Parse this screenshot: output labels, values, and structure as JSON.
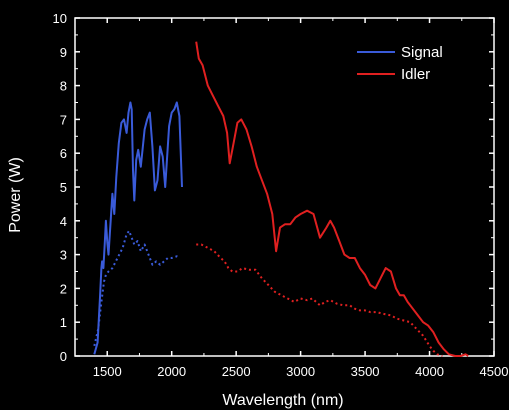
{
  "chart_data": {
    "type": "line",
    "title": "",
    "xlabel": "Wavelength (nm)",
    "ylabel": "Power (W)",
    "xlim": [
      1250,
      4500
    ],
    "ylim": [
      0,
      10
    ],
    "xticks": [
      1500,
      2000,
      2500,
      3000,
      3500,
      4000,
      4500
    ],
    "yticks": [
      0,
      1,
      2,
      3,
      4,
      5,
      6,
      7,
      8,
      9,
      10
    ],
    "background": "#000000",
    "axis_color": "#ffffff",
    "legend_position": "top-right",
    "series": [
      {
        "name": "Signal",
        "color": "#3a5bd9",
        "style": "solid",
        "in_legend": true,
        "x": [
          1400,
          1425,
          1445,
          1455,
          1460,
          1470,
          1480,
          1490,
          1500,
          1510,
          1520,
          1530,
          1540,
          1555,
          1570,
          1590,
          1610,
          1630,
          1650,
          1665,
          1680,
          1690,
          1700,
          1710,
          1725,
          1740,
          1760,
          1790,
          1810,
          1830,
          1850,
          1870,
          1890,
          1910,
          1930,
          1950,
          1980,
          2000,
          2020,
          2040,
          2060,
          2080
        ],
        "y": [
          0.05,
          0.4,
          1.8,
          2.6,
          2.8,
          2.6,
          3.3,
          4.0,
          3.4,
          3.0,
          3.6,
          4.2,
          4.8,
          4.2,
          5.3,
          6.3,
          6.9,
          7.0,
          6.6,
          7.2,
          7.5,
          7.3,
          5.5,
          4.6,
          5.8,
          6.1,
          5.6,
          6.7,
          7.0,
          7.2,
          6.2,
          4.9,
          5.2,
          6.2,
          5.9,
          5.0,
          6.8,
          7.2,
          7.3,
          7.5,
          7.1,
          5.0
        ]
      },
      {
        "name": "Signal (dotted)",
        "color": "#3a5bd9",
        "style": "dotted",
        "in_legend": false,
        "x": [
          1400,
          1430,
          1455,
          1475,
          1490,
          1510,
          1540,
          1580,
          1620,
          1650,
          1670,
          1690,
          1710,
          1735,
          1760,
          1790,
          1820,
          1850,
          1880,
          1910,
          1940,
          1970,
          2000,
          2040,
          2060
        ],
        "y": [
          0.3,
          0.8,
          1.6,
          2.2,
          2.4,
          2.5,
          2.6,
          2.9,
          3.2,
          3.6,
          3.7,
          3.5,
          3.3,
          3.4,
          3.1,
          3.3,
          3.0,
          2.7,
          2.8,
          2.7,
          2.8,
          2.9,
          2.9,
          2.95,
          2.9
        ]
      },
      {
        "name": "Idler",
        "color": "#e02020",
        "style": "solid",
        "in_legend": true,
        "x": [
          2190,
          2210,
          2240,
          2280,
          2320,
          2360,
          2400,
          2430,
          2450,
          2480,
          2510,
          2540,
          2580,
          2620,
          2660,
          2700,
          2740,
          2780,
          2810,
          2840,
          2880,
          2920,
          2960,
          3000,
          3050,
          3100,
          3150,
          3200,
          3230,
          3260,
          3300,
          3340,
          3380,
          3420,
          3460,
          3500,
          3540,
          3580,
          3620,
          3660,
          3700,
          3740,
          3770,
          3800,
          3830,
          3870,
          3910,
          3950,
          3990,
          4030,
          4070,
          4110,
          4150,
          4180,
          4200,
          4240,
          4280,
          4300
        ],
        "y": [
          9.3,
          8.8,
          8.6,
          8.0,
          7.7,
          7.4,
          7.1,
          6.6,
          5.7,
          6.3,
          6.9,
          7.0,
          6.7,
          6.2,
          5.6,
          5.2,
          4.8,
          4.2,
          3.1,
          3.8,
          3.9,
          3.9,
          4.1,
          4.2,
          4.3,
          4.2,
          3.5,
          3.8,
          4.0,
          3.8,
          3.4,
          3.0,
          2.9,
          2.9,
          2.6,
          2.4,
          2.1,
          2.0,
          2.3,
          2.6,
          2.5,
          2.0,
          1.8,
          1.8,
          1.6,
          1.4,
          1.2,
          1.0,
          0.9,
          0.7,
          0.4,
          0.2,
          0.05,
          0.02,
          0.0,
          0.0,
          0.05,
          0.0
        ]
      },
      {
        "name": "Idler (dotted)",
        "color": "#e02020",
        "style": "dotted",
        "in_legend": false,
        "x": [
          2190,
          2230,
          2280,
          2330,
          2380,
          2410,
          2440,
          2470,
          2510,
          2550,
          2600,
          2650,
          2700,
          2750,
          2800,
          2850,
          2900,
          2950,
          3000,
          3050,
          3090,
          3120,
          3150,
          3190,
          3230,
          3280,
          3330,
          3380,
          3420,
          3460,
          3500,
          3540,
          3590,
          3640,
          3700,
          3750,
          3800,
          3850,
          3900,
          3950,
          4000,
          4030,
          4060,
          4100
        ],
        "y": [
          3.3,
          3.3,
          3.2,
          3.1,
          2.9,
          2.8,
          2.6,
          2.5,
          2.5,
          2.6,
          2.55,
          2.55,
          2.3,
          2.1,
          1.9,
          1.8,
          1.7,
          1.6,
          1.7,
          1.65,
          1.7,
          1.6,
          1.5,
          1.6,
          1.65,
          1.55,
          1.5,
          1.5,
          1.4,
          1.35,
          1.35,
          1.3,
          1.3,
          1.25,
          1.2,
          1.1,
          1.05,
          1.0,
          0.8,
          0.6,
          0.3,
          0.15,
          0.05,
          0.0
        ]
      }
    ]
  }
}
